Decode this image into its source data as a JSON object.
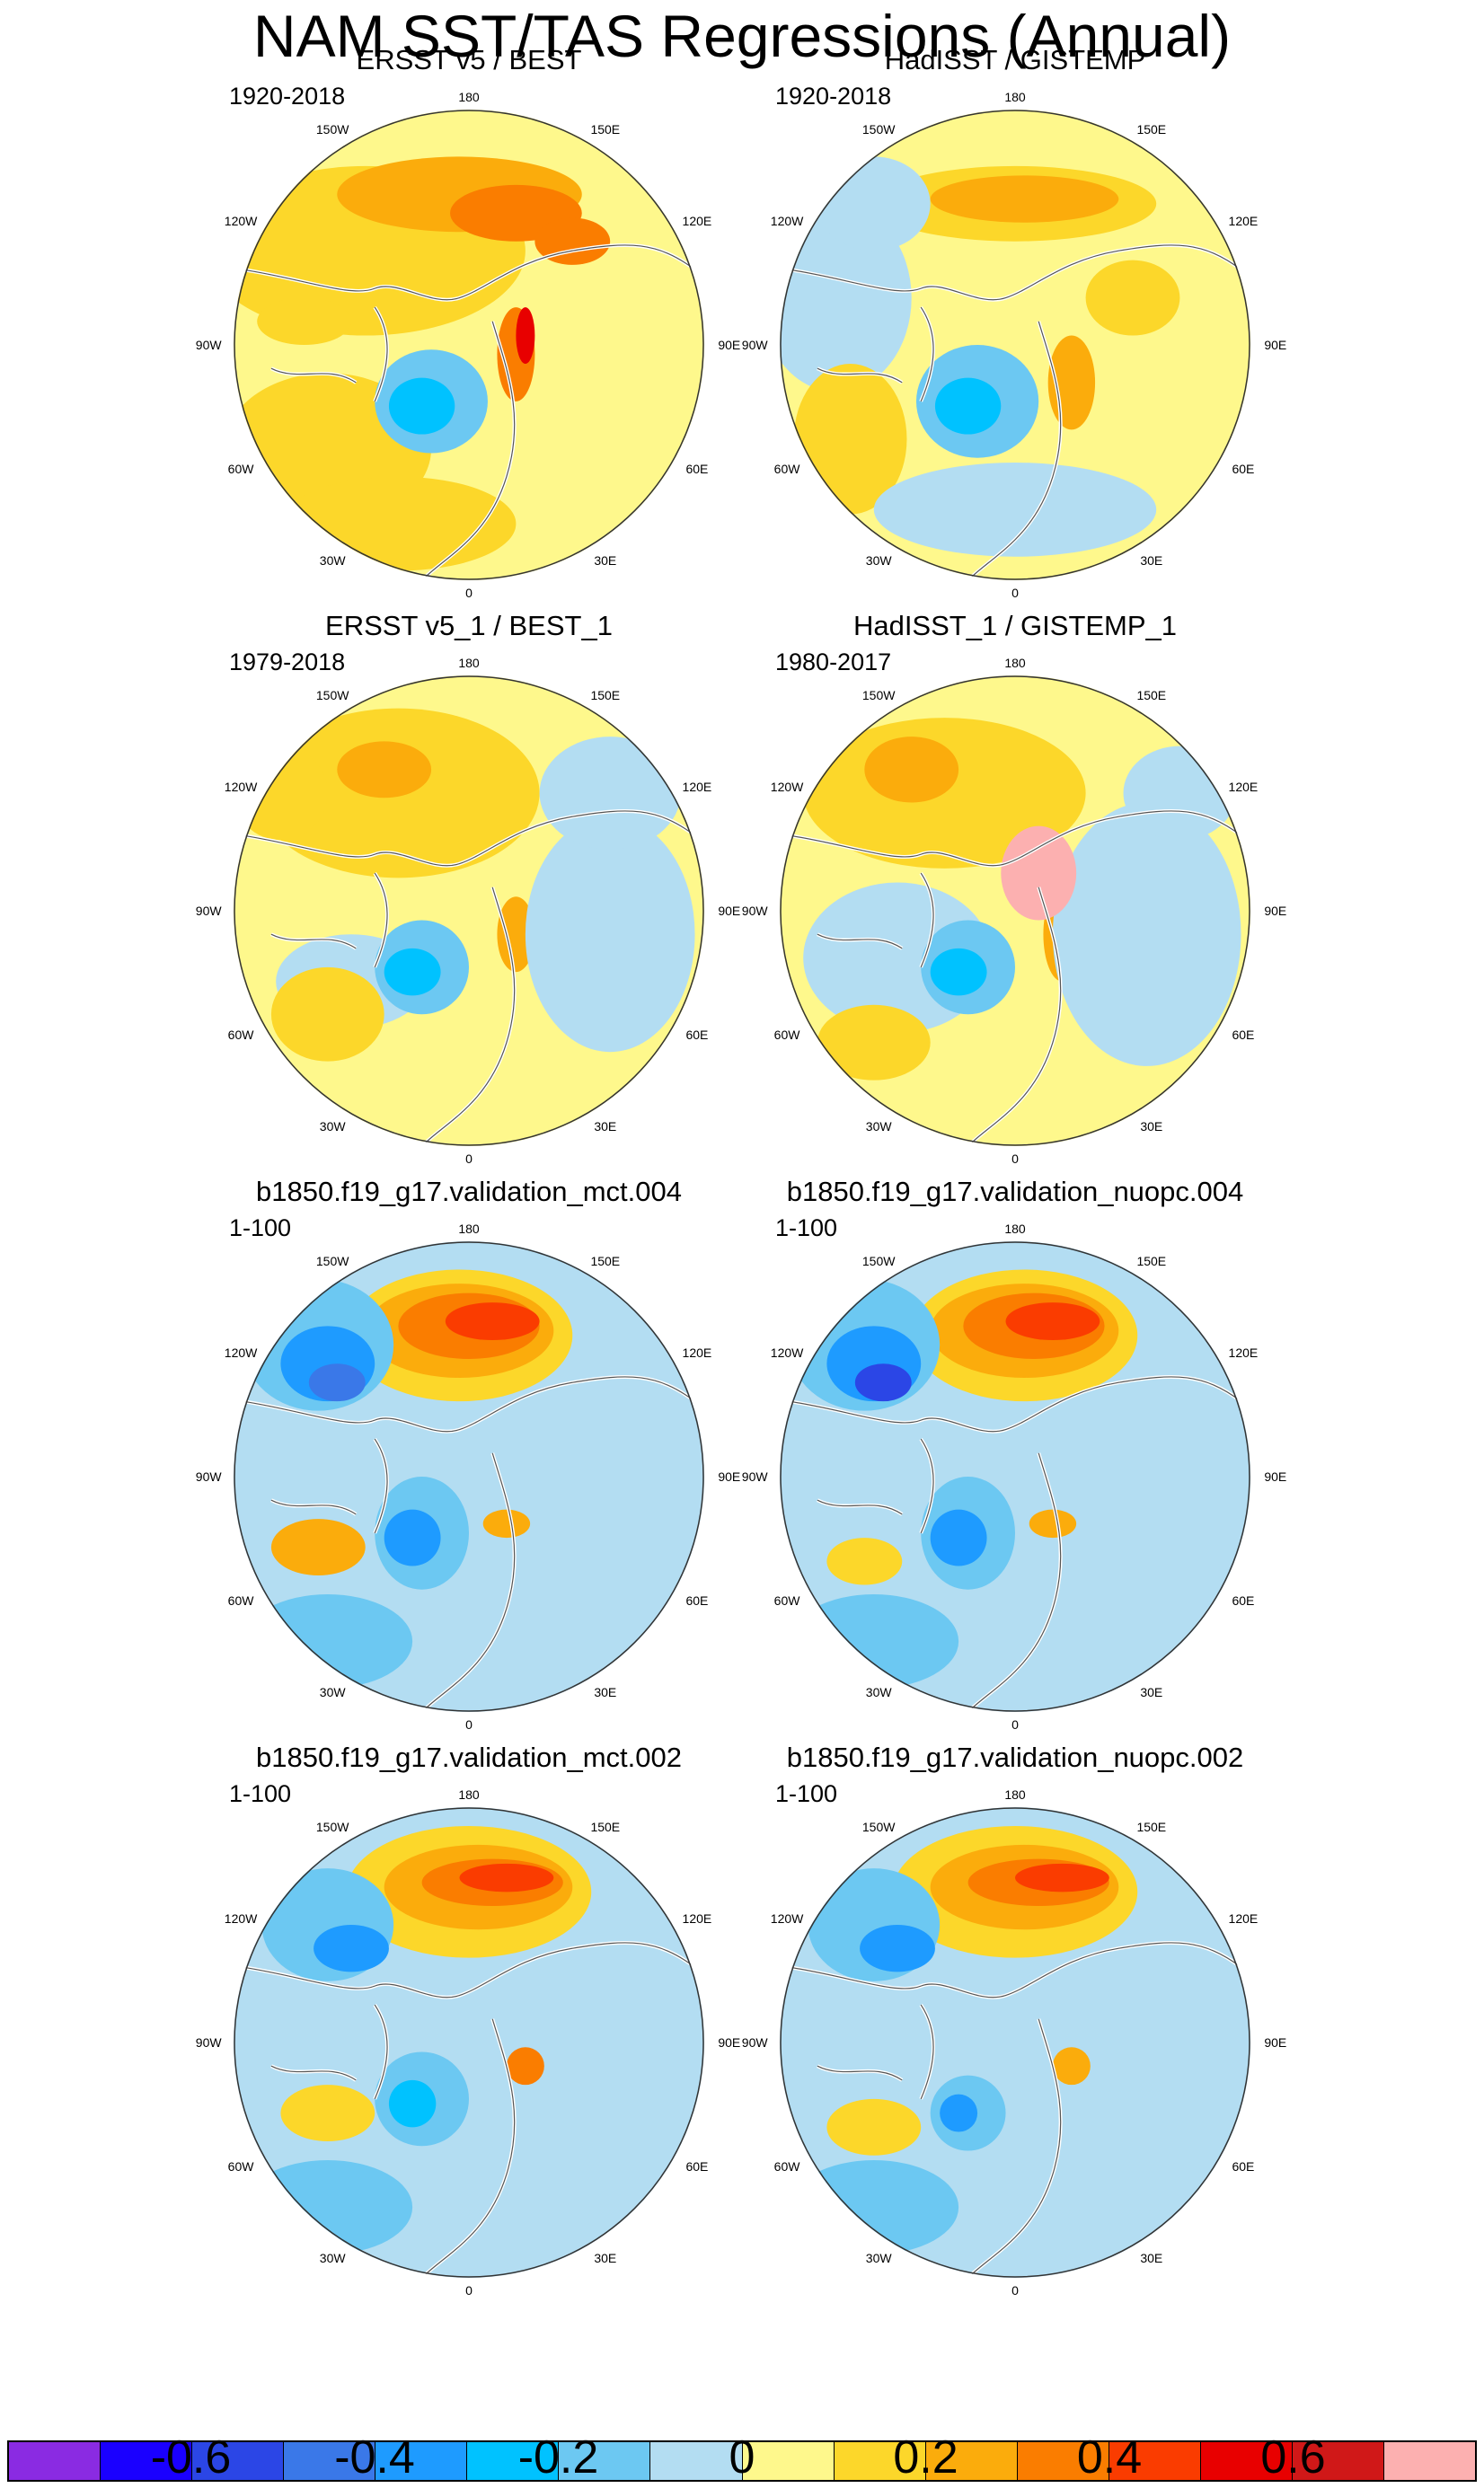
{
  "title": "NAM SST/TAS Regressions (Annual)",
  "panels": [
    {
      "title": "ERSST v5 / BEST",
      "period": "1920-2018"
    },
    {
      "title": "HadISST / GISTEMP",
      "period": "1920-2018"
    },
    {
      "title": "ERSST v5_1 / BEST_1",
      "period": "1979-2018"
    },
    {
      "title": "HadISST_1 / GISTEMP_1",
      "period": "1980-2017"
    },
    {
      "title": "b1850.f19_g17.validation_mct.004",
      "period": "1-100"
    },
    {
      "title": "b1850.f19_g17.validation_nuopc.004",
      "period": "1-100"
    },
    {
      "title": "b1850.f19_g17.validation_mct.002",
      "period": "1-100"
    },
    {
      "title": "b1850.f19_g17.validation_nuopc.002",
      "period": "1-100"
    }
  ],
  "longitude_labels": {
    "top": "180",
    "top_left": "150W",
    "top_right": "150E",
    "upper_left": "120W",
    "upper_right": "120E",
    "left": "90W",
    "right": "90E",
    "lower_left": "60W",
    "lower_right": "60E",
    "bottom_left": "30W",
    "bottom_right": "30E",
    "bottom": "0"
  },
  "colorbar": {
    "colors": [
      "#8a2be2",
      "#1a00ff",
      "#2b46e6",
      "#3a78e8",
      "#1e9bff",
      "#00c2ff",
      "#6cc8f2",
      "#b3ddf2",
      "#fef88c",
      "#fcd72a",
      "#fbac0c",
      "#fa7d00",
      "#fa3c00",
      "#e80000",
      "#d01818",
      "#fcb0b0"
    ],
    "labels": [
      "-0.6",
      "-0.4",
      "-0.2",
      "0",
      "0.2",
      "0.4",
      "0.6"
    ],
    "label_values": [
      -0.6,
      -0.4,
      -0.2,
      0,
      0.2,
      0.4,
      0.6
    ],
    "range": [
      -0.8,
      0.8
    ]
  },
  "icon_semantics": {
    "maps": "polar-stereographic-map-icon",
    "colorbar": "color-scale"
  }
}
